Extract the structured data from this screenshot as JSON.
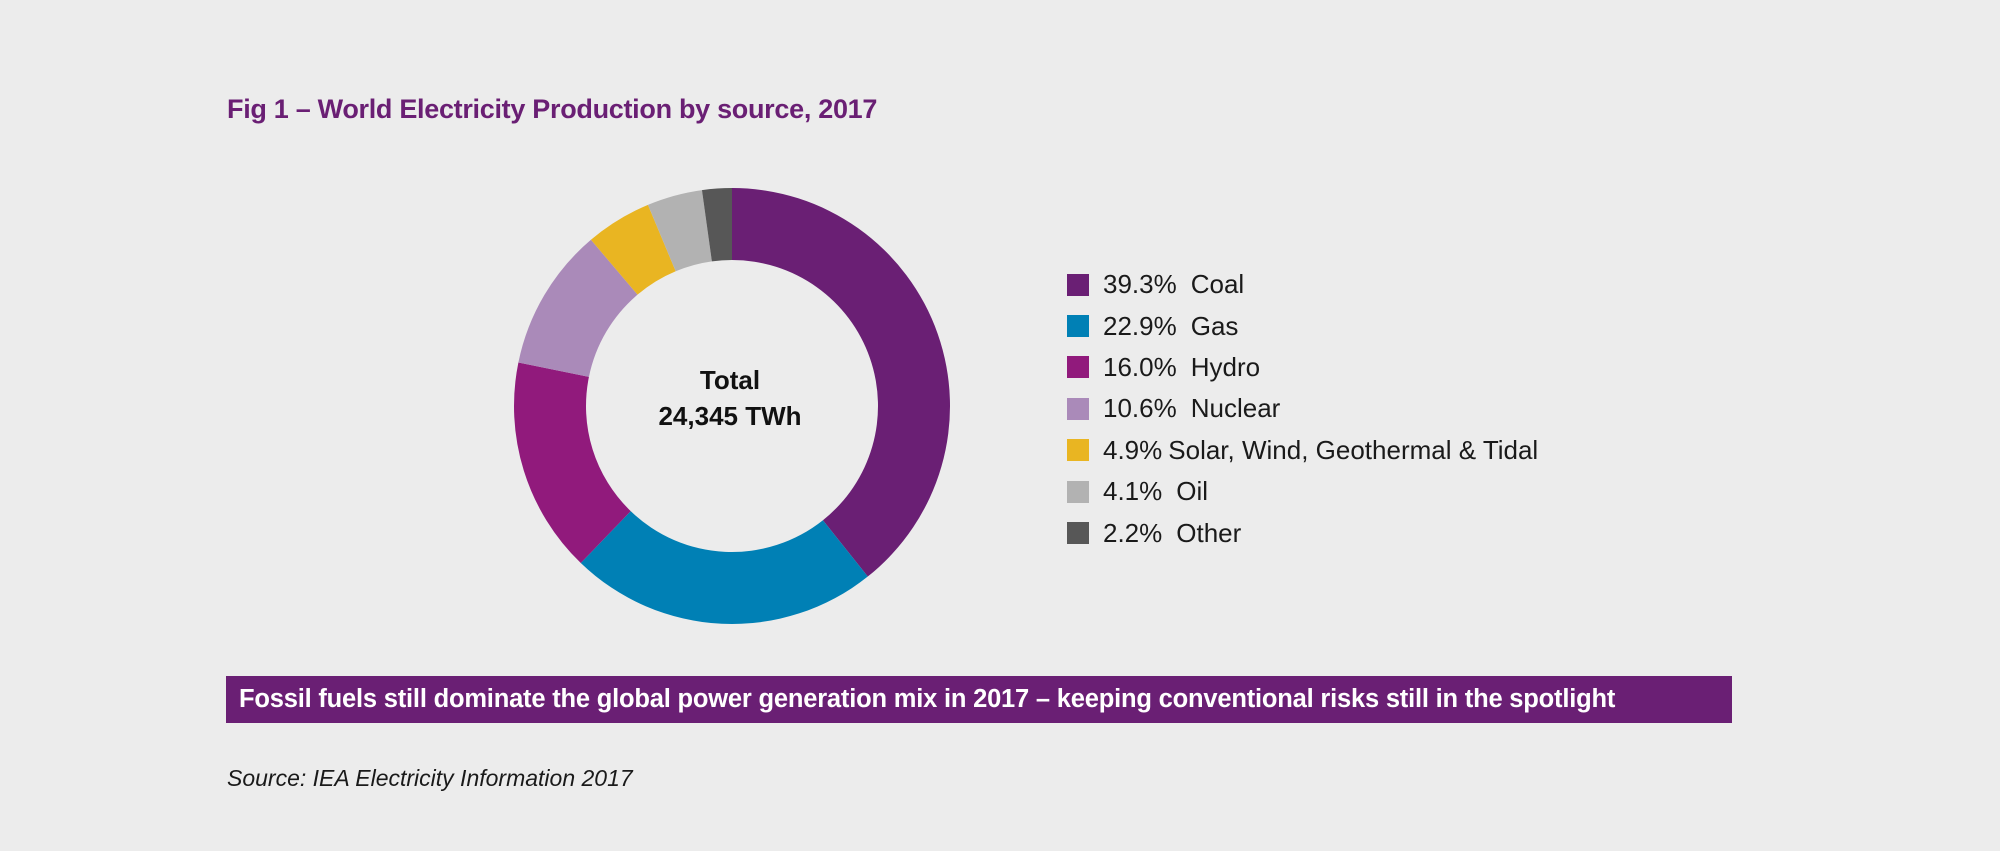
{
  "title": "Fig 1 – World Electricity Production by source, 2017",
  "center": {
    "line1": "Total",
    "line2": "24,345 TWh"
  },
  "banner": "Fossil fuels still dominate the global power generation mix in 2017 – keeping conventional risks still in the spotlight",
  "source": "Source: IEA Electricity Information 2017",
  "chart_data": {
    "type": "pie",
    "donut": true,
    "total_label": "24,345 TWh",
    "legend_position": "right",
    "slices": [
      {
        "label": "Coal",
        "pct_label": "39.3%",
        "value": 39.3,
        "color": "#6a1f74"
      },
      {
        "label": "Gas",
        "pct_label": "22.9%",
        "value": 22.9,
        "color": "#0080b5"
      },
      {
        "label": "Hydro",
        "pct_label": "16.0%",
        "value": 16.0,
        "color": "#911a7c"
      },
      {
        "label": "Nuclear",
        "pct_label": "10.6%",
        "value": 10.6,
        "color": "#aa8ab9"
      },
      {
        "label": "Solar, Wind, Geothermal & Tidal",
        "pct_label": "4.9%",
        "value": 4.9,
        "color": "#e9b522"
      },
      {
        "label": "Oil",
        "pct_label": "4.1%",
        "value": 4.1,
        "color": "#b2b2b2"
      },
      {
        "label": "Other",
        "pct_label": "2.2%",
        "value": 2.2,
        "color": "#575757"
      }
    ]
  }
}
